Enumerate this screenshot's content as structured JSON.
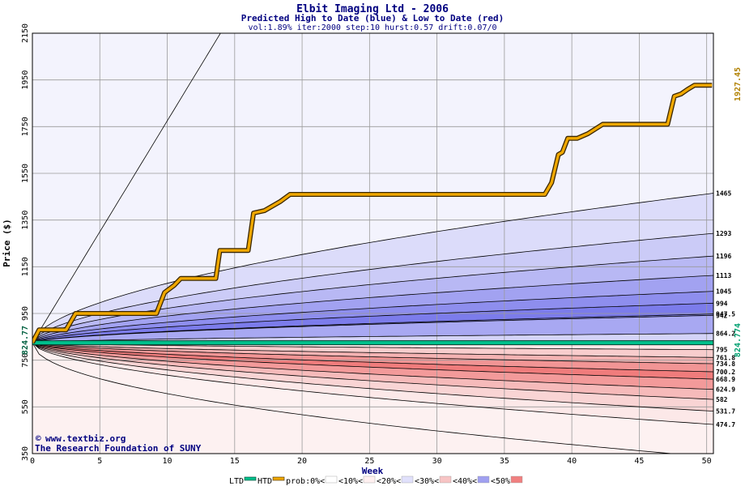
{
  "chart_data": {
    "type": "area",
    "title": "Elbit Imaging Ltd - 2006",
    "subtitle": "Predicted High to Date (blue) &  Low to Date (red)",
    "params": "vol:1.89% iter:2000 step:10 hurst:0.57 drift:0.07/0",
    "xlabel": "Week",
    "ylabel": "Price ($)",
    "xlim": [
      0,
      50.5
    ],
    "ylim": [
      350,
      2150
    ],
    "x_ticks": [
      0,
      5,
      10,
      15,
      20,
      25,
      30,
      35,
      40,
      45,
      50
    ],
    "y_ticks": [
      350,
      550,
      750,
      950,
      1150,
      1350,
      1550,
      1750,
      1950,
      2150
    ],
    "start_price": 824.77,
    "start_price_label": "824.77",
    "ltd_label": "824.774",
    "htd_label": "1927.45",
    "upper_curves": [
      {
        "label": "1465",
        "end": 1465,
        "fill": "#dcdcfa"
      },
      {
        "label": "1293",
        "end": 1293,
        "fill": "#cbcbf7"
      },
      {
        "label": "1196",
        "end": 1196,
        "fill": "#b8b8f4"
      },
      {
        "label": "1113",
        "end": 1113,
        "fill": "#a2a2f1"
      },
      {
        "label": "1045",
        "end": 1045,
        "fill": "#8e8eee"
      },
      {
        "label": "994",
        "end": 994,
        "fill": "#7c7ceb"
      },
      {
        "label": "947.5",
        "end": 947.5,
        "fill": "#8686ec"
      },
      {
        "label": "942",
        "end": 942,
        "fill": "#a8a8f2"
      },
      {
        "label": "864.2",
        "end": 864.2,
        "fill": "#d4d4f8"
      }
    ],
    "lower_curves": [
      {
        "label": "795",
        "end": 795,
        "fill": "#fbe6e6"
      },
      {
        "label": "761.8",
        "end": 761.8,
        "fill": "#f8cdcd"
      },
      {
        "label": "734.8",
        "end": 734.8,
        "fill": "#f5b3b3"
      },
      {
        "label": "700.2",
        "end": 700.2,
        "fill": "#f29595"
      },
      {
        "label": "668.9",
        "end": 668.9,
        "fill": "#f07c7c"
      },
      {
        "label": "624.9",
        "end": 624.9,
        "fill": "#f39a9a"
      },
      {
        "label": "582",
        "end": 582,
        "fill": "#f6baba"
      },
      {
        "label": "531.7",
        "end": 531.7,
        "fill": "#f9d4d4"
      },
      {
        "label": "474.7",
        "end": 474.7,
        "fill": "#fce8e8"
      }
    ],
    "htd_series": {
      "x": [
        0,
        0.5,
        2.5,
        3.2,
        9.2,
        9.8,
        10.5,
        11,
        13.6,
        13.9,
        16,
        16.4,
        17.2,
        17.8,
        18.4,
        19.1,
        38,
        38.5,
        39,
        39.3,
        39.7,
        40.4,
        41.2,
        42.3,
        47.1,
        47.6,
        48.1,
        48.6,
        49.1,
        50.4
      ],
      "y": [
        824.77,
        880,
        880,
        950,
        950,
        1040,
        1070,
        1100,
        1100,
        1220,
        1220,
        1380,
        1390,
        1410,
        1430,
        1460,
        1460,
        1510,
        1630,
        1640,
        1700,
        1700,
        1720,
        1760,
        1760,
        1880,
        1890,
        1910,
        1927.45,
        1927.45
      ]
    },
    "ltd_value": 824.774,
    "legend": {
      "ltd": "LTD",
      "htd": "HTD",
      "items": [
        {
          "label": "prob:0%<",
          "color": "#ffffff"
        },
        {
          "label": "<10%<",
          "color": "#fff0f0"
        },
        {
          "label": "<20%<",
          "color": "#e0e0fb"
        },
        {
          "label": "<30%<",
          "color": "#f7c4c4"
        },
        {
          "label": "<40%<",
          "color": "#a0a0f0"
        },
        {
          "label": "<50%",
          "color": "#f08080"
        }
      ]
    },
    "colors": {
      "outer_upper": "#f3f3fd",
      "outer_lower": "#fdf1f1",
      "htd": "#f0a800",
      "ltd": "#00c08c",
      "grid": "#9a9a9a",
      "dark_blue": "#000080"
    }
  },
  "watermark": {
    "line1": "www.textbiz.org",
    "line2": "The Research Foundation of SUNY"
  }
}
